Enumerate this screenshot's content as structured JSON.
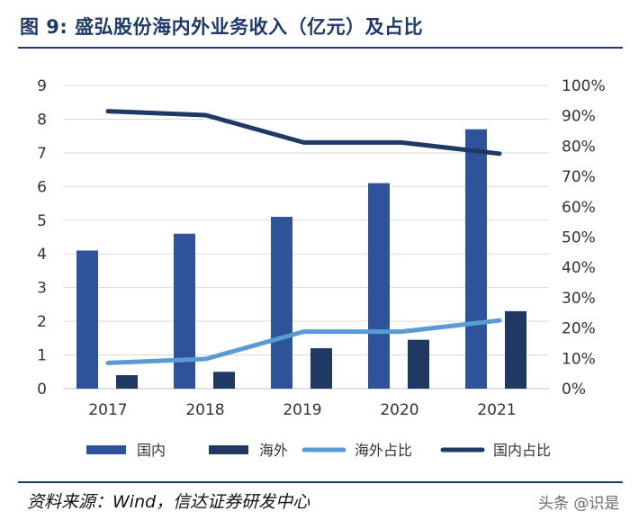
{
  "title": "图 9:  盛弘股份海内外业务收入（亿元）及占比",
  "source": "资料来源：Wind，信达证券研发中心",
  "watermark": "头条 @识是",
  "colors": {
    "domestic_bar": "#2f539b",
    "overseas_bar": "#1f3864",
    "overseas_share_line": "#5b9bd5",
    "domestic_share_line": "#1f3864"
  },
  "chart_data": {
    "type": "bar",
    "categories": [
      "2017",
      "2018",
      "2019",
      "2020",
      "2021"
    ],
    "series": [
      {
        "name": "国内",
        "type": "bar",
        "axis": "left",
        "values": [
          4.1,
          4.6,
          5.1,
          6.1,
          7.7
        ]
      },
      {
        "name": "海外",
        "type": "bar",
        "axis": "left",
        "values": [
          0.4,
          0.5,
          1.2,
          1.45,
          2.3
        ]
      },
      {
        "name": "海外占比",
        "type": "line",
        "axis": "right",
        "values": [
          8.5,
          9.8,
          18.8,
          18.8,
          22.5
        ]
      },
      {
        "name": "国内占比",
        "type": "line",
        "axis": "right",
        "values": [
          91.5,
          90.2,
          81.2,
          81.2,
          77.5
        ]
      }
    ],
    "y_left": {
      "min": 0,
      "max": 9,
      "ticks": [
        "0",
        "1",
        "2",
        "3",
        "4",
        "5",
        "6",
        "7",
        "8",
        "9"
      ]
    },
    "y_right": {
      "min": 0,
      "max": 100,
      "ticks": [
        "0%",
        "10%",
        "20%",
        "30%",
        "40%",
        "50%",
        "60%",
        "70%",
        "80%",
        "90%",
        "100%"
      ]
    },
    "legend": [
      "国内",
      "海外",
      "海外占比",
      "国内占比"
    ],
    "legend_position": "bottom",
    "grid": true
  }
}
